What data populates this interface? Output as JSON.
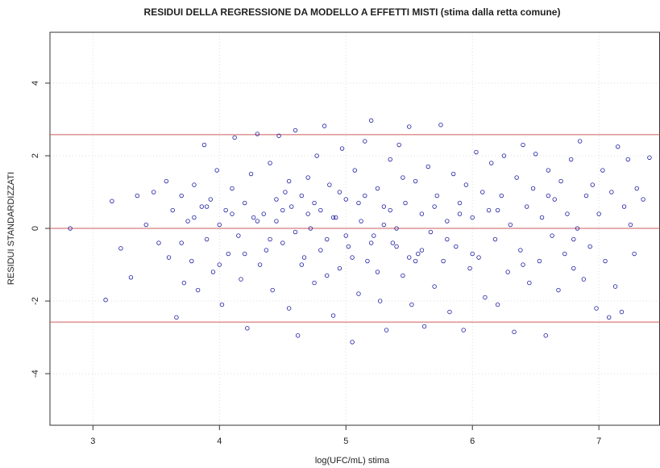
{
  "chart_data": {
    "type": "scatter",
    "title": "RESIDUI DELLA REGRESSIONE DA MODELLO A EFFETTI MISTI (stima dalla retta comune)",
    "x_label": "log(UFC/mL) stima",
    "y_label": "RESIDUI STANDARDIZZATI",
    "xlim": [
      2.66,
      7.48
    ],
    "ylim": [
      -5.42,
      5.4
    ],
    "xticks": [
      3,
      4,
      5,
      6,
      7
    ],
    "yticks": [
      -4,
      -2,
      0,
      2,
      4
    ],
    "grid": true,
    "reference_lines": [
      0,
      2.58,
      -2.58
    ],
    "reference_color": "#cd5c5c",
    "color": "#1a1aa0",
    "x": [
      2.82,
      3.1,
      3.15,
      3.22,
      3.3,
      3.35,
      3.42,
      3.48,
      3.52,
      3.58,
      3.6,
      3.63,
      3.66,
      3.7,
      3.72,
      3.75,
      3.78,
      3.8,
      3.83,
      3.86,
      3.88,
      3.9,
      3.93,
      3.95,
      3.98,
      4.0,
      4.02,
      4.05,
      4.07,
      4.1,
      4.12,
      4.15,
      4.17,
      4.2,
      4.22,
      4.25,
      4.27,
      4.3,
      4.32,
      4.35,
      4.37,
      4.4,
      4.42,
      4.45,
      4.47,
      4.5,
      4.52,
      4.55,
      4.57,
      4.6,
      4.62,
      4.65,
      4.67,
      4.7,
      4.72,
      4.75,
      4.77,
      4.8,
      4.83,
      4.85,
      4.87,
      4.9,
      4.92,
      4.95,
      4.97,
      5.0,
      5.02,
      5.05,
      5.07,
      5.1,
      5.12,
      5.15,
      5.17,
      5.2,
      5.22,
      5.25,
      5.27,
      5.3,
      5.32,
      5.35,
      5.37,
      5.4,
      5.42,
      5.45,
      5.47,
      5.5,
      5.52,
      5.55,
      5.57,
      5.6,
      5.62,
      5.65,
      5.67,
      5.7,
      5.72,
      5.75,
      5.77,
      5.8,
      5.82,
      5.85,
      5.87,
      5.9,
      5.93,
      5.95,
      5.98,
      6.0,
      6.03,
      6.05,
      6.08,
      6.1,
      6.13,
      6.15,
      6.18,
      6.2,
      6.23,
      6.25,
      6.28,
      6.3,
      6.33,
      6.35,
      6.38,
      6.4,
      6.43,
      6.45,
      6.48,
      6.5,
      6.53,
      6.55,
      6.58,
      6.6,
      6.63,
      6.65,
      6.68,
      6.7,
      6.73,
      6.75,
      6.78,
      6.8,
      6.83,
      6.85,
      6.88,
      6.9,
      6.93,
      6.95,
      6.98,
      7.0,
      7.03,
      7.05,
      7.08,
      7.1,
      7.13,
      7.15,
      7.18,
      7.2,
      7.23,
      7.25,
      7.28,
      7.3,
      7.35,
      7.4,
      4.3,
      4.4,
      4.5,
      4.6,
      4.7,
      4.8,
      4.9,
      5.0,
      5.1,
      5.2,
      5.3,
      5.4,
      5.5,
      5.6,
      5.7,
      5.8,
      5.9,
      6.0,
      4.45,
      4.55,
      4.65,
      4.75,
      4.85,
      4.95,
      5.05,
      5.15,
      5.25,
      5.35,
      5.45,
      5.55,
      4.2,
      4.1,
      4.0,
      3.9,
      3.8,
      3.7,
      6.2,
      6.4,
      6.6,
      6.8
    ],
    "y": [
      0,
      -1.97,
      0.75,
      -0.55,
      -1.35,
      0.9,
      0.1,
      1.0,
      -0.4,
      1.3,
      -0.8,
      0.5,
      -2.45,
      0.9,
      -1.5,
      0.2,
      -0.9,
      1.2,
      -1.7,
      0.6,
      2.3,
      -0.3,
      0.8,
      -1.2,
      1.6,
      0.1,
      -2.1,
      0.5,
      -0.7,
      1.1,
      2.5,
      -0.2,
      -1.4,
      0.7,
      -2.75,
      1.5,
      0.3,
      2.6,
      -1.0,
      0.4,
      -0.6,
      1.8,
      -1.7,
      0.2,
      2.55,
      -0.4,
      1.0,
      -2.2,
      0.6,
      2.7,
      -2.95,
      0.9,
      -0.8,
      1.4,
      0.0,
      -1.5,
      2.0,
      0.5,
      2.82,
      -0.3,
      1.2,
      -2.4,
      0.3,
      -1.1,
      2.2,
      0.8,
      -0.5,
      -3.13,
      1.6,
      -1.8,
      0.2,
      2.4,
      -0.9,
      2.97,
      -0.2,
      1.1,
      -2.0,
      0.6,
      -2.8,
      1.9,
      -0.4,
      0.0,
      2.3,
      -1.3,
      0.7,
      2.8,
      -2.1,
      1.3,
      -0.7,
      0.4,
      -2.7,
      1.7,
      -0.1,
      -1.6,
      0.9,
      2.85,
      -0.9,
      0.2,
      -2.3,
      1.5,
      -0.5,
      0.7,
      -2.8,
      1.2,
      -1.1,
      0.3,
      2.1,
      -0.8,
      1.0,
      -1.9,
      0.5,
      1.8,
      -0.3,
      -2.1,
      0.9,
      2.0,
      -1.2,
      0.1,
      -2.85,
      1.4,
      -0.6,
      2.3,
      0.6,
      -1.5,
      1.1,
      2.05,
      -0.9,
      0.3,
      -2.95,
      1.6,
      -0.2,
      0.8,
      -1.7,
      1.3,
      -0.7,
      0.4,
      1.9,
      -1.1,
      0.0,
      2.4,
      -1.4,
      0.9,
      -0.5,
      1.2,
      -2.2,
      0.4,
      1.6,
      -0.9,
      -2.45,
      1.0,
      -1.6,
      2.25,
      -2.3,
      0.6,
      1.9,
      0.1,
      -0.7,
      1.1,
      0.8,
      1.95,
      0.2,
      -0.3,
      0.5,
      -0.1,
      0.4,
      -0.6,
      0.3,
      -0.2,
      0.7,
      -0.4,
      0.1,
      -0.5,
      -0.8,
      -0.6,
      0.6,
      -0.3,
      0.4,
      -0.7,
      0.8,
      1.3,
      -1.0,
      0.7,
      -1.3,
      1.0,
      -0.8,
      0.9,
      -1.2,
      0.5,
      1.4,
      -0.9,
      -0.7,
      0.4,
      -1.0,
      0.6,
      0.3,
      -0.4,
      0.5,
      -1.0,
      0.9,
      -0.3
    ]
  }
}
